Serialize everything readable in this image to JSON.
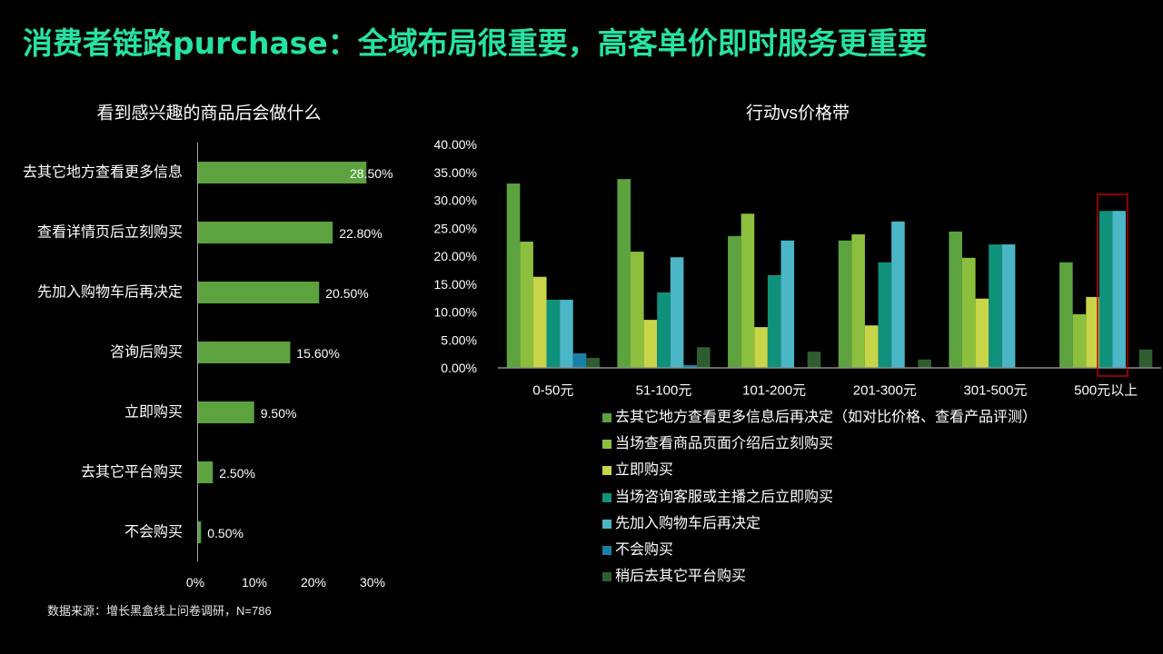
{
  "slide": {
    "title": "消费者链路purchase：全域布局很重要，高客单价即时服务更重要",
    "title_color": "#25e3a3",
    "background": "#000000",
    "source_note": "数据来源：增长黑盒线上问卷调研，N=786"
  },
  "chart_data": [
    {
      "type": "bar",
      "orientation": "horizontal",
      "title": "看到感兴趣的商品后会做什么",
      "categories": [
        "去其它地方查看更多信息",
        "查看详情页后立刻购买",
        "先加入购物车后再决定",
        "咨询后购买",
        "立即购买",
        "去其它平台购买",
        "不会购买"
      ],
      "values": [
        28.5,
        22.8,
        20.5,
        15.6,
        9.5,
        2.5,
        0.5
      ],
      "data_labels": [
        "28.50%",
        "22.80%",
        "20.50%",
        "15.60%",
        "9.50%",
        "2.50%",
        "0.50%"
      ],
      "xlim": [
        0,
        30
      ],
      "xticks": [
        0,
        10,
        20,
        30
      ],
      "xtick_labels": [
        "0%",
        "10%",
        "20%",
        "30%"
      ],
      "xlabel": "",
      "ylabel": "",
      "bar_color": "#5ca23f",
      "grid": false
    },
    {
      "type": "bar",
      "orientation": "vertical",
      "title": "行动vs价格带",
      "categories": [
        "0-50元",
        "51-100元",
        "101-200元",
        "201-300元",
        "301-500元",
        "500元以上"
      ],
      "series": [
        {
          "name": "去其它地方查看更多信息后再决定（如对比价格、查看产品评测）",
          "color": "#5ca23f",
          "values": [
            33.0,
            33.8,
            23.6,
            22.8,
            24.4,
            18.9
          ]
        },
        {
          "name": "当场查看商品页面介绍后立刻购买",
          "color": "#8dbf3e",
          "values": [
            22.6,
            20.8,
            27.6,
            23.9,
            19.7,
            9.6
          ]
        },
        {
          "name": "立即购买",
          "color": "#c8d548",
          "values": [
            16.3,
            8.6,
            7.3,
            7.6,
            12.4,
            12.7
          ]
        },
        {
          "name": "当场咨询客服或主播之后立即购买",
          "color": "#0f917b",
          "values": [
            12.2,
            13.5,
            16.6,
            18.9,
            22.1,
            28.1
          ]
        },
        {
          "name": "先加入购物车后再决定",
          "color": "#4bb6c6",
          "values": [
            12.2,
            19.8,
            22.8,
            26.2,
            22.1,
            28.1
          ]
        },
        {
          "name": "不会购买",
          "color": "#1781a8",
          "values": [
            2.6,
            0.5,
            0,
            0,
            0,
            0
          ]
        },
        {
          "name": "稍后去其它平台购买",
          "color": "#2e5e30",
          "values": [
            1.8,
            3.7,
            2.9,
            1.5,
            0,
            3.3
          ]
        }
      ],
      "ylim": [
        0,
        40
      ],
      "yticks": [
        0,
        5,
        10,
        15,
        20,
        25,
        30,
        35,
        40
      ],
      "ytick_labels": [
        "0.00%",
        "5.00%",
        "10.00%",
        "15.00%",
        "20.00%",
        "25.00%",
        "30.00%",
        "35.00%",
        "40.00%"
      ],
      "xlabel": "",
      "ylabel": "",
      "grid": false,
      "legend": "bottom"
    }
  ]
}
